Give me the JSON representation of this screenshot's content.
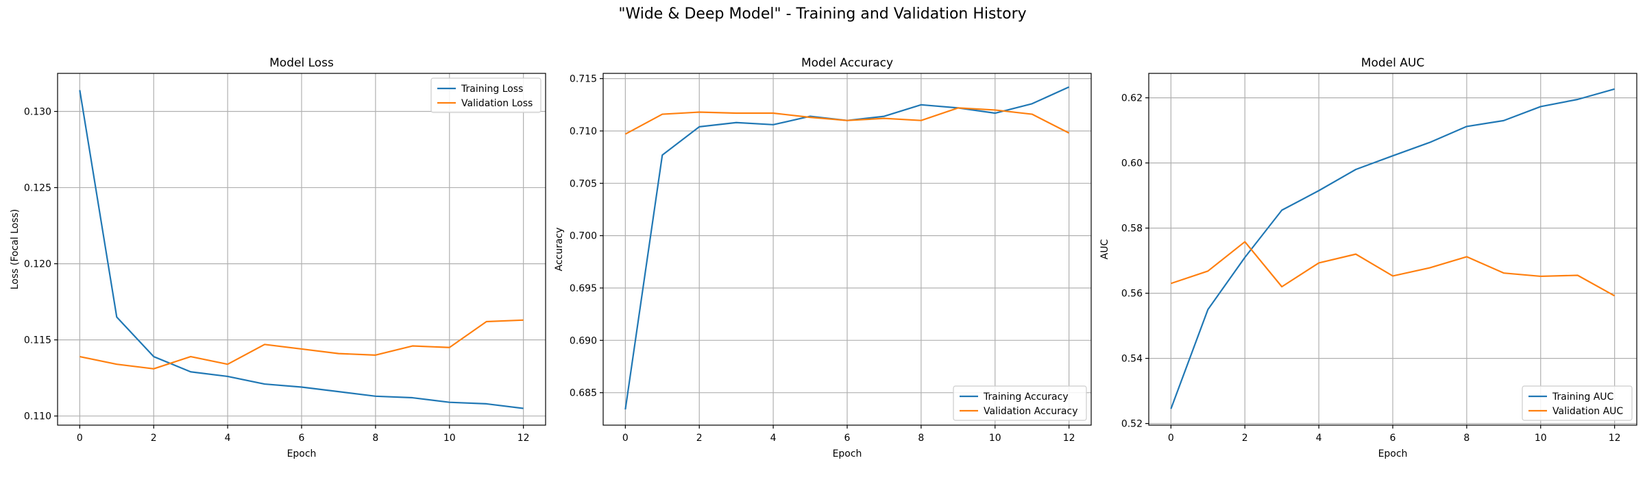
{
  "figure": {
    "suptitle": "\"Wide & Deep Model\" - Training and Validation History"
  },
  "chart_data": [
    {
      "type": "line",
      "title": "Model Loss",
      "xlabel": "Epoch",
      "ylabel": "Loss (Focal Loss)",
      "xlim": [
        -0.6,
        12.6
      ],
      "ylim": [
        0.1094,
        0.1325
      ],
      "xticks": [
        0,
        2,
        4,
        6,
        8,
        10,
        12
      ],
      "yticks": [
        0.11,
        0.115,
        0.12,
        0.125,
        0.13
      ],
      "ytick_decimals": 3,
      "grid": true,
      "legend": "upper-right",
      "x": [
        0,
        1,
        2,
        3,
        4,
        5,
        6,
        7,
        8,
        9,
        10,
        11,
        12
      ],
      "series": [
        {
          "name": "Training Loss",
          "color": "#1f77b4",
          "values": [
            0.1314,
            0.1165,
            0.1139,
            0.1129,
            0.1126,
            0.1121,
            0.1119,
            0.1116,
            0.1113,
            0.1112,
            0.1109,
            0.1108,
            0.1105
          ]
        },
        {
          "name": "Validation Loss",
          "color": "#ff7f0e",
          "values": [
            0.1139,
            0.1134,
            0.1131,
            0.1139,
            0.1134,
            0.1147,
            0.1144,
            0.1141,
            0.114,
            0.1146,
            0.1145,
            0.1162,
            0.1163
          ]
        }
      ]
    },
    {
      "type": "line",
      "title": "Model Accuracy",
      "xlabel": "Epoch",
      "ylabel": "Accuracy",
      "xlim": [
        -0.6,
        12.6
      ],
      "ylim": [
        0.6819,
        0.7155
      ],
      "xticks": [
        0,
        2,
        4,
        6,
        8,
        10,
        12
      ],
      "yticks": [
        0.685,
        0.69,
        0.695,
        0.7,
        0.705,
        0.71,
        0.715
      ],
      "ytick_decimals": 3,
      "grid": true,
      "legend": "lower-right",
      "x": [
        0,
        1,
        2,
        3,
        4,
        5,
        6,
        7,
        8,
        9,
        10,
        11,
        12
      ],
      "series": [
        {
          "name": "Training Accuracy",
          "color": "#1f77b4",
          "values": [
            0.6834,
            0.7077,
            0.7104,
            0.7108,
            0.7106,
            0.7114,
            0.711,
            0.7114,
            0.7125,
            0.7122,
            0.7117,
            0.7126,
            0.7142
          ]
        },
        {
          "name": "Validation Accuracy",
          "color": "#ff7f0e",
          "values": [
            0.7097,
            0.7116,
            0.7118,
            0.7117,
            0.7117,
            0.7113,
            0.711,
            0.7112,
            0.711,
            0.7122,
            0.712,
            0.7116,
            0.7098
          ]
        }
      ]
    },
    {
      "type": "line",
      "title": "Model AUC",
      "xlabel": "Epoch",
      "ylabel": "AUC",
      "xlim": [
        -0.6,
        12.6
      ],
      "ylim": [
        0.5195,
        0.6275
      ],
      "xticks": [
        0,
        2,
        4,
        6,
        8,
        10,
        12
      ],
      "yticks": [
        0.52,
        0.54,
        0.56,
        0.58,
        0.6,
        0.62
      ],
      "ytick_decimals": 2,
      "grid": true,
      "legend": "lower-right",
      "x": [
        0,
        1,
        2,
        3,
        4,
        5,
        6,
        7,
        8,
        9,
        10,
        11,
        12
      ],
      "series": [
        {
          "name": "Training AUC",
          "color": "#1f77b4",
          "values": [
            0.5245,
            0.555,
            0.571,
            0.5855,
            0.5915,
            0.598,
            0.6022,
            0.6063,
            0.6112,
            0.613,
            0.6173,
            0.6195,
            0.6227
          ]
        },
        {
          "name": "Validation AUC",
          "color": "#ff7f0e",
          "values": [
            0.563,
            0.5668,
            0.5758,
            0.562,
            0.5693,
            0.572,
            0.5653,
            0.5678,
            0.5712,
            0.5662,
            0.5652,
            0.5655,
            0.5592
          ]
        }
      ]
    }
  ]
}
